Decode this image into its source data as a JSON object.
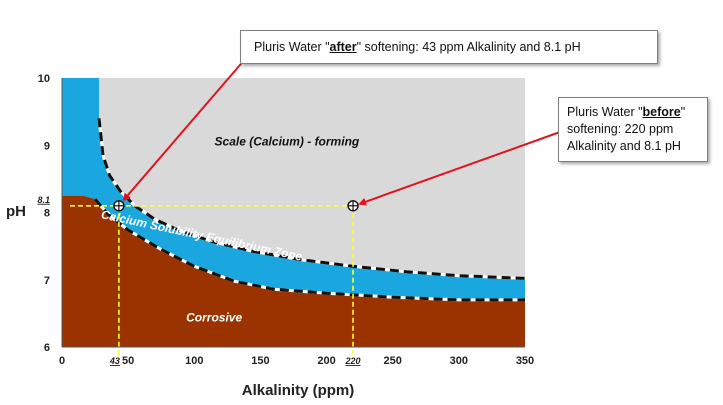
{
  "chart_data": {
    "type": "area",
    "title": "",
    "xlabel": "Alkalinity (ppm)",
    "ylabel": "pH",
    "xlim": [
      0,
      350
    ],
    "ylim": [
      6,
      10
    ],
    "x_ticks": [
      0,
      50,
      100,
      150,
      200,
      250,
      300,
      350
    ],
    "y_ticks": [
      6,
      7,
      8,
      9,
      10
    ],
    "regions": [
      {
        "name": "Scale (Calcium) - forming",
        "color": "#d9d9d9"
      },
      {
        "name": "Calcium Solubility Equilibrium Zone",
        "color": "#1aa7e0"
      },
      {
        "name": "Corrosive",
        "color": "#9a3300"
      }
    ],
    "boundaries": {
      "upper_x": [
        28,
        28,
        31,
        36,
        44,
        55,
        70,
        90,
        115,
        145,
        180,
        220,
        260,
        300,
        350
      ],
      "upper_y": [
        10,
        9.4,
        8.85,
        8.55,
        8.32,
        8.1,
        7.9,
        7.72,
        7.56,
        7.42,
        7.3,
        7.2,
        7.12,
        7.06,
        7.02
      ],
      "lower_x": [
        0,
        16,
        25,
        35,
        50,
        75,
        100,
        130,
        160,
        200,
        250,
        300,
        350
      ],
      "lower_y": [
        8.25,
        8.25,
        8.2,
        7.97,
        7.74,
        7.45,
        7.2,
        6.98,
        6.86,
        6.8,
        6.74,
        6.7,
        6.7
      ]
    },
    "points": [
      {
        "name": "after",
        "x": 43,
        "y": 8.1,
        "x_label": "43",
        "y_label": "8.1"
      },
      {
        "name": "before",
        "x": 220,
        "y": 8.1,
        "x_label": "220"
      }
    ],
    "annotations": {
      "after_prefix": "Pluris Water \"",
      "after_keyword": "after",
      "after_suffix": "\" softening: 43 ppm Alkalinity and 8.1 pH",
      "before_prefix": "Pluris Water \"",
      "before_keyword": "before",
      "before_suffix": "\" softening: 220 ppm Alkalinity and 8.1 pH"
    },
    "colors": {
      "scale": "#d9d9d9",
      "zone": "#1aa7e0",
      "corrosive": "#9a3300",
      "guide": "#ffff33",
      "arrow": "#e0141e",
      "boundary": "#111111"
    }
  }
}
